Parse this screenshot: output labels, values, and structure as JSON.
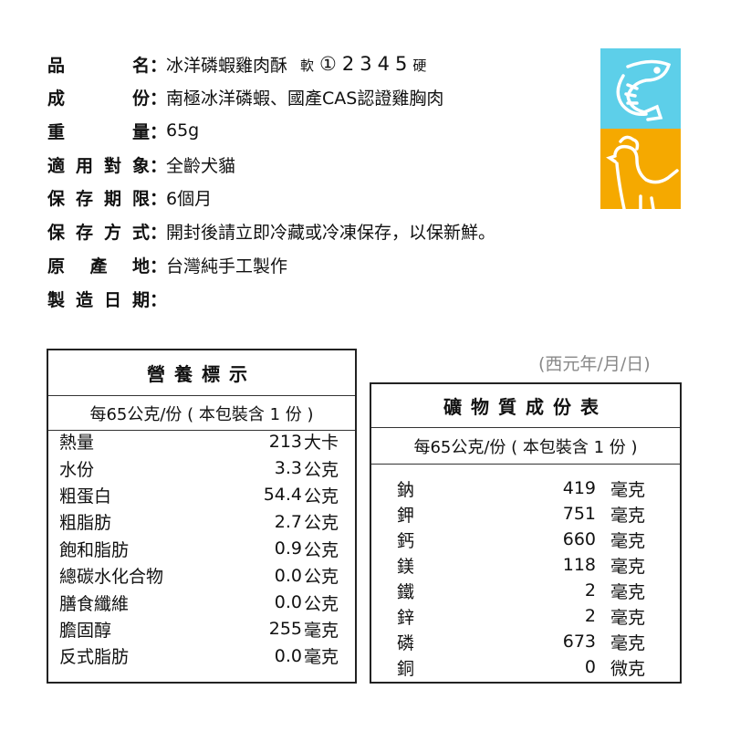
{
  "info": [
    {
      "label": "品名",
      "value": "冰洋磷蝦雞肉酥",
      "scale": {
        "soft": "軟",
        "levels": [
          "①",
          "2",
          "3",
          "4",
          "5"
        ],
        "hard": "硬",
        "selected": 1
      }
    },
    {
      "label": "成份",
      "value": "南極冰洋磷蝦、國產CAS認證雞胸肉"
    },
    {
      "label": "重量",
      "value": "65g"
    },
    {
      "label": "適用對象",
      "value": "全齡犬貓"
    },
    {
      "label": "保存期限",
      "value": "6個月"
    },
    {
      "label": "保存方式",
      "value": "開封後請立即冷藏或冷凍保存，以保新鮮。"
    },
    {
      "label": "原產地",
      "value": "台灣純手工製作"
    },
    {
      "label": "製造日期",
      "value": ""
    }
  ],
  "colon": "：",
  "date_note": "(西元年/月/日)",
  "icons": {
    "shrimp": {
      "name": "shrimp-icon",
      "color": "#5dcfe9"
    },
    "chicken": {
      "name": "chicken-icon",
      "color": "#f5a900"
    }
  },
  "nutrition": {
    "title": "營養標示",
    "subtitle": "每65公克/份 ( 本包裝含 1 份 )",
    "rows": [
      {
        "name": "熱量",
        "value": "213",
        "unit": "大卡"
      },
      {
        "name": "水份",
        "value": "3.3",
        "unit": "公克"
      },
      {
        "name": "粗蛋白",
        "value": "54.4",
        "unit": "公克"
      },
      {
        "name": "粗脂肪",
        "value": "2.7",
        "unit": "公克"
      },
      {
        "name": "飽和脂肪",
        "value": "0.9",
        "unit": "公克"
      },
      {
        "name": "總碳水化合物",
        "value": "0.0",
        "unit": "公克"
      },
      {
        "name": "膳食纖維",
        "value": "0.0",
        "unit": "公克"
      },
      {
        "name": "膽固醇",
        "value": "255",
        "unit": "毫克"
      },
      {
        "name": "反式脂肪",
        "value": "0.0",
        "unit": "毫克"
      }
    ]
  },
  "minerals": {
    "title": "礦物質成份表",
    "subtitle": "每65公克/份 ( 本包裝含 1 份 )",
    "rows": [
      {
        "name": "鈉",
        "value": "419",
        "unit": "毫克"
      },
      {
        "name": "鉀",
        "value": "751",
        "unit": "毫克"
      },
      {
        "name": "鈣",
        "value": "660",
        "unit": "毫克"
      },
      {
        "name": "鎂",
        "value": "118",
        "unit": "毫克"
      },
      {
        "name": "鐵",
        "value": "2",
        "unit": "毫克"
      },
      {
        "name": "鋅",
        "value": "2",
        "unit": "毫克"
      },
      {
        "name": "磷",
        "value": "673",
        "unit": "毫克"
      },
      {
        "name": "銅",
        "value": "0",
        "unit": "微克"
      }
    ]
  }
}
